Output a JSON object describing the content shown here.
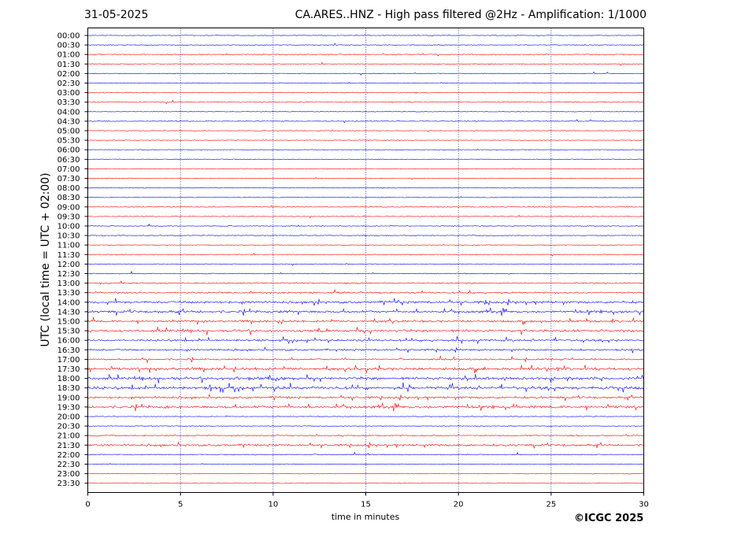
{
  "header": {
    "date": "31-05-2025",
    "title": "CA.ARES..HNZ - High pass filtered @2Hz - Amplification: 1/1000"
  },
  "footer": {
    "copyright": "©ICGC 2025"
  },
  "chart_data": {
    "type": "line",
    "xlabel": "time in minutes",
    "ylabel": "UTC (local time = UTC + 02:00)",
    "xlim": [
      0,
      30
    ],
    "x_ticks": [
      0,
      5,
      10,
      15,
      20,
      25,
      30
    ],
    "grid": "vertical dotted at 5-minute intervals",
    "colors": {
      "odd_hour_trace": "#ff0000",
      "even_hour_trace": "#0000ff",
      "grid": "#00008b"
    },
    "rows": [
      "00:00",
      "00:30",
      "01:00",
      "01:30",
      "02:00",
      "02:30",
      "03:00",
      "03:30",
      "04:00",
      "04:30",
      "05:00",
      "05:30",
      "06:00",
      "06:30",
      "07:00",
      "07:30",
      "08:00",
      "08:30",
      "09:00",
      "09:30",
      "10:00",
      "10:30",
      "11:00",
      "11:30",
      "12:00",
      "12:30",
      "13:00",
      "13:30",
      "14:00",
      "14:30",
      "15:00",
      "15:30",
      "16:00",
      "16:30",
      "17:00",
      "17:30",
      "18:00",
      "18:30",
      "19:00",
      "19:30",
      "20:00",
      "20:30",
      "21:00",
      "21:30",
      "22:00",
      "22:30",
      "23:00",
      "23:30"
    ],
    "activity": [
      0.05,
      0.06,
      0.15,
      0.15,
      0.1,
      0.08,
      0.1,
      0.15,
      0.05,
      0.1,
      0.03,
      0.03,
      0.03,
      0.03,
      0.03,
      0.03,
      0.03,
      0.06,
      0.08,
      0.08,
      0.08,
      0.12,
      0.05,
      0.1,
      0.06,
      0.15,
      0.3,
      0.4,
      0.7,
      0.75,
      0.6,
      0.7,
      0.6,
      0.5,
      0.4,
      0.8,
      0.85,
      0.95,
      0.6,
      0.8,
      0.05,
      0.06,
      0.3,
      0.6,
      0.15,
      0.05,
      0.03,
      0.03
    ]
  }
}
